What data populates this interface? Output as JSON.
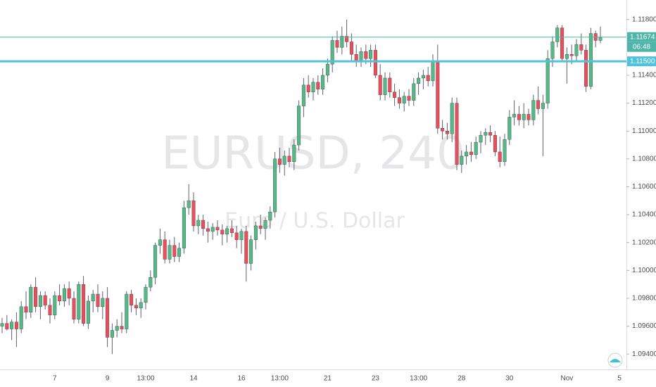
{
  "chart_data": {
    "type": "candlestick",
    "title": "EURUSD, 240",
    "subtitle": "Euro / U.S. Dollar",
    "categories": [
      null,
      null,
      null,
      null,
      null,
      null,
      null,
      null,
      null,
      null,
      null,
      "7",
      null,
      null,
      null,
      null,
      null,
      null,
      null,
      null,
      null,
      null,
      "9",
      null,
      null,
      null,
      null,
      null,
      null,
      null,
      "13:00",
      null,
      null,
      null,
      null,
      null,
      null,
      null,
      null,
      null,
      "14",
      null,
      null,
      null,
      null,
      null,
      null,
      null,
      null,
      null,
      "16",
      null,
      null,
      null,
      null,
      null,
      null,
      null,
      "13:00",
      null,
      null,
      null,
      null,
      null,
      null,
      null,
      null,
      null,
      "21",
      null,
      null,
      null,
      null,
      null,
      null,
      null,
      null,
      null,
      "23",
      null,
      null,
      null,
      null,
      null,
      null,
      null,
      null,
      "13:00",
      null,
      null,
      null,
      null,
      null,
      null,
      null,
      null,
      "28",
      null,
      null,
      null,
      null,
      null,
      null,
      null,
      null,
      null,
      "30",
      null,
      null,
      null,
      null,
      null,
      null,
      null,
      null,
      null,
      null,
      null,
      "Nov",
      null,
      null,
      null,
      null,
      null,
      null,
      null,
      null,
      null,
      null,
      "5"
    ],
    "open": [
      1.096,
      1.0962,
      1.0958,
      1.0963,
      1.0958,
      1.0974,
      1.097,
      1.0988,
      1.0974,
      1.0982,
      1.0975,
      1.0968,
      1.0982,
      1.0978,
      1.0987,
      1.098,
      1.0965,
      1.099,
      1.0962,
      1.0978,
      1.0983,
      1.0974,
      1.098,
      1.0952,
      1.0957,
      1.096,
      1.0958,
      1.0983,
      1.0975,
      1.0973,
      1.0977,
      1.0988,
      1.0995,
      1.1018,
      1.1022,
      1.1008,
      1.1018,
      1.101,
      1.1016,
      1.1045,
      1.105,
      1.1032,
      1.1036,
      1.103,
      1.1028,
      1.1031,
      1.1029,
      1.1026,
      1.103,
      1.1027,
      1.1022,
      1.1028,
      1.1005,
      1.1022,
      1.1032,
      1.103,
      1.1036,
      1.1042,
      1.108,
      1.1076,
      1.1082,
      1.1078,
      1.109,
      1.1118,
      1.1133,
      1.1128,
      1.1135,
      1.113,
      1.114,
      1.1148,
      1.1165,
      1.116,
      1.1168,
      1.1164,
      1.1155,
      1.115,
      1.1157,
      1.1152,
      1.1158,
      1.114,
      1.1126,
      1.1138,
      1.1128,
      1.1124,
      1.112,
      1.1125,
      1.1122,
      1.1134,
      1.1138,
      1.114,
      1.1136,
      1.115,
      1.1102,
      1.11,
      1.1098,
      1.112,
      1.1076,
      1.1082,
      1.1085,
      1.1083,
      1.1092,
      1.1097,
      1.1099,
      1.1097,
      1.1085,
      1.1078,
      1.1094,
      1.111,
      1.1112,
      1.1108,
      1.1112,
      1.1108,
      1.1122,
      1.1116,
      1.112,
      1.1152,
      1.1164,
      1.1174,
      1.1152,
      1.1155,
      1.1154,
      1.1162,
      1.1158,
      1.1132,
      1.117,
      1.1165,
      null,
      null,
      null,
      null
    ],
    "high": [
      1.0966,
      1.0968,
      1.0965,
      1.097,
      1.0978,
      1.0985,
      1.099,
      1.0995,
      1.0985,
      1.0985,
      1.098,
      1.0985,
      1.099,
      1.099,
      1.0992,
      1.0985,
      1.0992,
      1.0996,
      1.0982,
      1.0986,
      1.099,
      1.0985,
      1.0988,
      1.0962,
      1.0965,
      1.097,
      1.0985,
      1.0986,
      1.098,
      1.098,
      1.099,
      1.1,
      1.102,
      1.103,
      1.1028,
      1.1022,
      1.1024,
      1.102,
      1.105,
      1.1062,
      1.1056,
      1.104,
      1.104,
      1.1035,
      1.1034,
      1.1036,
      1.1033,
      1.1032,
      1.1036,
      1.1032,
      1.103,
      1.1032,
      1.1025,
      1.1035,
      1.104,
      1.1038,
      1.1046,
      1.1085,
      1.1088,
      1.1086,
      1.1088,
      1.1094,
      1.1122,
      1.1138,
      1.114,
      1.1138,
      1.114,
      1.1145,
      1.1152,
      1.1168,
      1.1172,
      1.1175,
      1.118,
      1.117,
      1.1162,
      1.116,
      1.1162,
      1.1162,
      1.1162,
      1.1148,
      1.1142,
      1.1142,
      1.1134,
      1.113,
      1.1128,
      1.113,
      1.1138,
      1.1142,
      1.1144,
      1.1146,
      1.1155,
      1.1162,
      1.1108,
      1.1106,
      1.1124,
      1.1124,
      1.1086,
      1.109,
      1.1092,
      1.1096,
      1.11,
      1.1102,
      1.1104,
      1.11,
      1.1096,
      1.1098,
      1.1115,
      1.1122,
      1.1118,
      1.112,
      1.1116,
      1.1126,
      1.1132,
      1.1126,
      1.1158,
      1.1168,
      1.1176,
      1.1176,
      1.116,
      1.1162,
      1.1166,
      1.117,
      1.1162,
      1.1174,
      1.1172,
      1.1175,
      null,
      null,
      null,
      null
    ],
    "low": [
      1.0955,
      1.0957,
      1.095,
      1.0945,
      1.0955,
      1.0965,
      1.0966,
      1.097,
      1.0965,
      1.0972,
      1.0962,
      1.0965,
      1.0975,
      1.0974,
      1.0975,
      1.0962,
      1.0962,
      1.096,
      1.0958,
      1.097,
      1.097,
      1.0965,
      1.0945,
      1.094,
      1.0952,
      1.0955,
      1.0955,
      1.097,
      1.0968,
      1.0966,
      1.0972,
      1.0985,
      1.099,
      1.1012,
      1.1005,
      1.1005,
      1.1006,
      1.1006,
      1.1012,
      1.104,
      1.1028,
      1.1026,
      1.1025,
      1.102,
      1.1022,
      1.1025,
      1.1018,
      1.102,
      1.1024,
      1.1016,
      1.1012,
      1.0992,
      1.1,
      1.1015,
      1.1026,
      1.1022,
      1.103,
      1.1038,
      1.107,
      1.1068,
      1.1074,
      1.1072,
      1.1086,
      1.111,
      1.1124,
      1.1122,
      1.1126,
      1.1126,
      1.1135,
      1.1142,
      1.1156,
      1.1155,
      1.116,
      1.115,
      1.1146,
      1.1146,
      1.1148,
      1.1146,
      1.1138,
      1.1122,
      1.1122,
      1.1124,
      1.1118,
      1.1116,
      1.1114,
      1.1118,
      1.1118,
      1.1126,
      1.113,
      1.1132,
      1.1132,
      1.1098,
      1.1094,
      1.1094,
      1.1092,
      1.1072,
      1.107,
      1.1076,
      1.1078,
      1.108,
      1.1084,
      1.109,
      1.1092,
      1.1082,
      1.1074,
      1.1075,
      1.109,
      1.1104,
      1.1104,
      1.1102,
      1.1104,
      1.1104,
      1.1112,
      1.1082,
      1.1116,
      1.1146,
      1.116,
      1.115,
      1.1134,
      1.1148,
      1.115,
      1.1155,
      1.1128,
      1.113,
      1.116,
      1.1163,
      null,
      null,
      null,
      null
    ],
    "close": [
      1.0962,
      1.0958,
      1.0963,
      1.0958,
      1.0974,
      1.097,
      1.0988,
      1.0974,
      1.0982,
      1.0975,
      1.0968,
      1.0982,
      1.0978,
      1.0987,
      1.098,
      1.0965,
      1.099,
      1.0962,
      1.0978,
      1.0983,
      1.0974,
      1.098,
      1.0952,
      1.0957,
      1.096,
      1.0958,
      1.0983,
      1.0975,
      1.0973,
      1.0977,
      1.0988,
      1.0995,
      1.1018,
      1.1022,
      1.1008,
      1.1018,
      1.101,
      1.1016,
      1.1045,
      1.105,
      1.1032,
      1.1036,
      1.103,
      1.1028,
      1.1031,
      1.1029,
      1.1026,
      1.103,
      1.1027,
      1.1022,
      1.1028,
      1.1005,
      1.1022,
      1.1032,
      1.103,
      1.1036,
      1.1042,
      1.108,
      1.1076,
      1.1082,
      1.1078,
      1.109,
      1.1118,
      1.1133,
      1.1128,
      1.1135,
      1.113,
      1.114,
      1.1148,
      1.1165,
      1.116,
      1.1168,
      1.1164,
      1.1155,
      1.115,
      1.1157,
      1.1152,
      1.1158,
      1.114,
      1.1126,
      1.1138,
      1.1128,
      1.1124,
      1.112,
      1.1125,
      1.1122,
      1.1134,
      1.1138,
      1.114,
      1.1136,
      1.115,
      1.1102,
      1.11,
      1.1098,
      1.112,
      1.1076,
      1.1082,
      1.1085,
      1.1083,
      1.1092,
      1.1097,
      1.1099,
      1.1097,
      1.1085,
      1.1078,
      1.1094,
      1.111,
      1.1112,
      1.1108,
      1.1112,
      1.1108,
      1.1122,
      1.1116,
      1.112,
      1.1152,
      1.1164,
      1.1174,
      1.1152,
      1.1155,
      1.1154,
      1.1162,
      1.1158,
      1.1132,
      1.117,
      1.1165,
      1.1167,
      null,
      null,
      null,
      null
    ],
    "up_color": "#53b987",
    "down_color": "#eb4d5c",
    "ylim": [
      1.0929,
      1.1194
    ],
    "yticks": [
      {
        "value": 1.094,
        "label": "1.09400"
      },
      {
        "value": 1.096,
        "label": "1.09600"
      },
      {
        "value": 1.098,
        "label": "1.09800"
      },
      {
        "value": 1.1,
        "label": "1.10000"
      },
      {
        "value": 1.102,
        "label": "1.10200"
      },
      {
        "value": 1.104,
        "label": "1.10400"
      },
      {
        "value": 1.106,
        "label": "1.10600"
      },
      {
        "value": 1.108,
        "label": "1.10800"
      },
      {
        "value": 1.11,
        "label": "1.11000"
      },
      {
        "value": 1.112,
        "label": "1.11200"
      },
      {
        "value": 1.114,
        "label": "1.11400"
      },
      {
        "value": 1.118,
        "label": "1.11800"
      }
    ],
    "price_lines": [
      {
        "value": 1.11674,
        "label": "1.11674",
        "color": "#4fb5a8",
        "width": 1
      },
      {
        "value": 1.115,
        "label": "1.11500",
        "color": "#4fc3d9",
        "width": 3
      }
    ],
    "countdown": "06:48"
  }
}
